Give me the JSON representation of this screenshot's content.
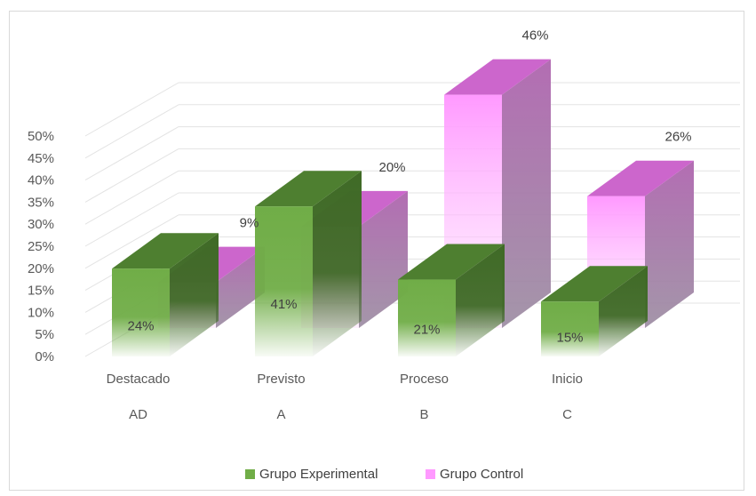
{
  "chart_data": {
    "type": "bar",
    "title": "",
    "xlabel": "",
    "ylabel": "",
    "ylim": [
      0,
      0.5
    ],
    "yticks": [
      "0%",
      "5%",
      "10%",
      "15%",
      "20%",
      "25%",
      "30%",
      "35%",
      "40%",
      "45%",
      "50%"
    ],
    "categories": [
      {
        "name": "Destacado",
        "code": "AD"
      },
      {
        "name": "Previsto",
        "code": "A"
      },
      {
        "name": "Proceso",
        "code": "B"
      },
      {
        "name": "Inicio",
        "code": "C"
      }
    ],
    "series": [
      {
        "name": "Grupo Experimental",
        "values": [
          0.24,
          0.41,
          0.21,
          0.15
        ],
        "labels": [
          "24%",
          "41%",
          "21%",
          "15%"
        ],
        "color": "#70ad47",
        "top_color": "#4e7f30",
        "side_color": "#3f6a26"
      },
      {
        "name": "Grupo Control",
        "values": [
          0.09,
          0.2,
          0.46,
          0.26
        ],
        "labels": [
          "9%",
          "20%",
          "46%",
          "26%"
        ],
        "color": "#ff99ff",
        "top_color": "#cc66cc",
        "side_color": "#b26fb2"
      }
    ],
    "grid": true,
    "legend": "bottom",
    "three_d": true
  }
}
